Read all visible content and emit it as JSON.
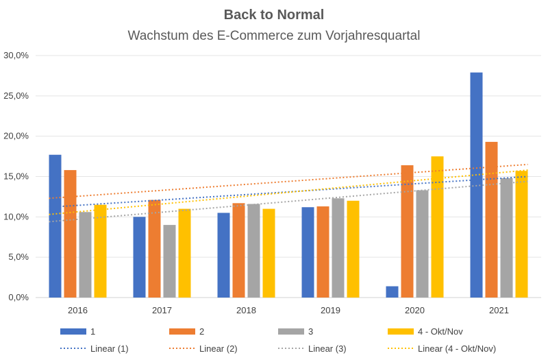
{
  "chart_data": {
    "type": "bar",
    "title": "Back to Normal",
    "subtitle": "Wachstum des E-Commerce zum Vorjahresquartal",
    "categories": [
      "2016",
      "2017",
      "2018",
      "2019",
      "2020",
      "2021"
    ],
    "series": [
      {
        "name": "1",
        "color": "#4472C4",
        "values": [
          17.7,
          10.0,
          10.5,
          11.2,
          1.4,
          27.9
        ]
      },
      {
        "name": "2",
        "color": "#ED7D31",
        "values": [
          15.8,
          12.1,
          11.7,
          11.3,
          16.4,
          19.3
        ]
      },
      {
        "name": "3",
        "color": "#A5A5A5",
        "values": [
          10.6,
          9.0,
          11.6,
          12.3,
          13.3,
          14.8
        ]
      },
      {
        "name": "4 - Okt/Nov",
        "color": "#FFC000",
        "values": [
          11.5,
          11.0,
          11.0,
          12.0,
          17.5,
          15.7
        ]
      }
    ],
    "trendlines": [
      {
        "name": "Linear (1)",
        "color": "#4472C4",
        "start": 11.2,
        "end": 15.0
      },
      {
        "name": "Linear (2)",
        "color": "#ED7D31",
        "start": 12.3,
        "end": 16.5
      },
      {
        "name": "Linear (3)",
        "color": "#A5A5A5",
        "start": 9.4,
        "end": 14.4
      },
      {
        "name": "Linear (4 - Okt/Nov)",
        "color": "#FFC000",
        "start": 10.3,
        "end": 15.8
      }
    ],
    "ylim": [
      0,
      30
    ],
    "yticks": [
      "0,0%",
      "5,0%",
      "10,0%",
      "15,0%",
      "20,0%",
      "25,0%",
      "30,0%"
    ],
    "grid": true,
    "legend_position": "bottom"
  }
}
